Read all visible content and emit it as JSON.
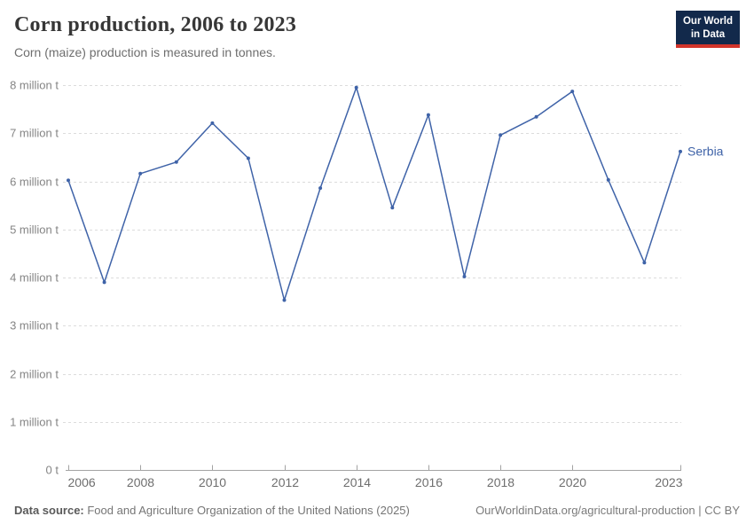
{
  "header": {
    "title": "Corn production, 2006 to 2023",
    "subtitle": "Corn (maize) production is measured in tonnes.",
    "logo": {
      "line1": "Our World",
      "line2": "in Data"
    }
  },
  "footer": {
    "source_label": "Data source:",
    "source_text": " Food and Agriculture Organization of the United Nations (2025)",
    "link_text": "OurWorldinData.org/agricultural-production | CC BY"
  },
  "colors": {
    "line": "#3f63a8",
    "grid": "#dcdcdc",
    "axis": "#a3a3a3",
    "y_label": "#858585",
    "x_label": "#6e6e6e"
  },
  "chart_data": {
    "type": "line",
    "title": "Corn production, 2006 to 2023",
    "subtitle": "Corn (maize) production is measured in tonnes.",
    "xlabel": "",
    "ylabel": "",
    "unit": "tonnes",
    "xlim": [
      2006,
      2023
    ],
    "ylim": [
      0,
      8000000
    ],
    "grid": "horizontal-dashed",
    "legend": "end-of-line-label",
    "x_ticks": [
      2006,
      2008,
      2010,
      2012,
      2014,
      2016,
      2018,
      2020,
      2023
    ],
    "y_ticks": [
      {
        "value": 0,
        "label": "0 t"
      },
      {
        "value": 1000000,
        "label": "1 million t"
      },
      {
        "value": 2000000,
        "label": "2 million t"
      },
      {
        "value": 3000000,
        "label": "3 million t"
      },
      {
        "value": 4000000,
        "label": "4 million t"
      },
      {
        "value": 5000000,
        "label": "5 million t"
      },
      {
        "value": 6000000,
        "label": "6 million t"
      },
      {
        "value": 7000000,
        "label": "7 million t"
      },
      {
        "value": 8000000,
        "label": "8 million t"
      }
    ],
    "series": [
      {
        "name": "Serbia",
        "color": "#3f63a8",
        "x": [
          2006,
          2007,
          2008,
          2009,
          2010,
          2011,
          2012,
          2013,
          2014,
          2015,
          2016,
          2017,
          2018,
          2019,
          2020,
          2021,
          2022,
          2023
        ],
        "values": [
          6020000,
          3900000,
          6160000,
          6400000,
          7210000,
          6480000,
          3530000,
          5860000,
          7950000,
          5450000,
          7380000,
          4020000,
          6960000,
          7340000,
          7870000,
          6030000,
          4310000,
          6620000
        ]
      }
    ]
  }
}
